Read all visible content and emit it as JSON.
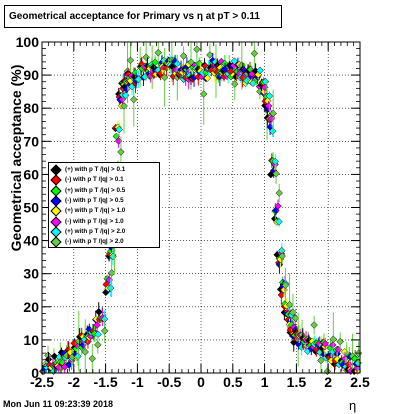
{
  "title": "Geometrical acceptance for Primary vs  η at pT > 0.11",
  "footer_date": "Mon Jun 11 09:23:39 2018",
  "chart_data": {
    "type": "scatter",
    "xlabel": "η",
    "ylabel": "Geometrical acceptance (%)",
    "xlim": [
      -2.5,
      2.5
    ],
    "ylim": [
      0,
      100
    ],
    "x_ticks": [
      "-2.5",
      "-2",
      "-1.5",
      "-1",
      "-0.5",
      "0",
      "0.5",
      "1",
      "1.5",
      "2",
      "2.5"
    ],
    "y_ticks": [
      "0",
      "10",
      "20",
      "30",
      "40",
      "50",
      "60",
      "70",
      "80",
      "90",
      "100"
    ],
    "grid": true,
    "legend_position": "left-middle",
    "series": [
      {
        "name": "(+) with p T /|q| > 0.1",
        "color": "#000000"
      },
      {
        "name": "(-) with p T /|q| > 0.1",
        "color": "#ff0000"
      },
      {
        "name": "(+) with p T /|q| > 0.5",
        "color": "#00ff00"
      },
      {
        "name": "(-) with p T /|q| > 0.5",
        "color": "#0000ff"
      },
      {
        "name": "(+) with p T /|q| > 1.0",
        "color": "#ffff00"
      },
      {
        "name": "(-) with p T /|q| > 1.0",
        "color": "#ff00ff"
      },
      {
        "name": "(+) with p T /|q| > 2.0",
        "color": "#00ffff"
      },
      {
        "name": "(-) with p T /|q| > 2.0",
        "color": "#66cc44"
      }
    ],
    "profile": {
      "eta": [
        -2.45,
        -2.35,
        -2.25,
        -2.15,
        -2.05,
        -1.95,
        -1.85,
        -1.75,
        -1.65,
        -1.55,
        -1.45,
        -1.4,
        -1.35,
        -1.3,
        -1.25,
        -1.2,
        -1.15,
        -1.1,
        -1.0,
        -0.9,
        -0.8,
        -0.7,
        -0.6,
        -0.5,
        -0.4,
        -0.3,
        -0.2,
        -0.1,
        0.0,
        0.1,
        0.2,
        0.3,
        0.4,
        0.5,
        0.6,
        0.7,
        0.8,
        0.9,
        1.0,
        1.05,
        1.1,
        1.15,
        1.2,
        1.25,
        1.3,
        1.35,
        1.4,
        1.45,
        1.5,
        1.55,
        1.65,
        1.75,
        1.85,
        1.95,
        2.05,
        2.15,
        2.25,
        2.35,
        2.45
      ],
      "acceptance": [
        1,
        2,
        3,
        4,
        5,
        7,
        9,
        11,
        14,
        18,
        26,
        36,
        55,
        72,
        82,
        86,
        88,
        89,
        90,
        91,
        91,
        92,
        92,
        92,
        92,
        91,
        91,
        91,
        91,
        91,
        92,
        92,
        92,
        92,
        91,
        90,
        90,
        89,
        86,
        82,
        75,
        62,
        48,
        35,
        26,
        20,
        16,
        13,
        11,
        10,
        9,
        8,
        7,
        7,
        6,
        5,
        4,
        3,
        2
      ]
    }
  }
}
